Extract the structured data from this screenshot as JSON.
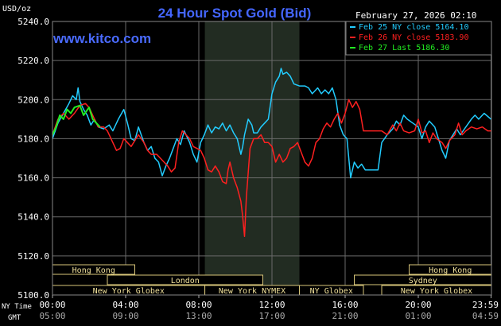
{
  "chart_data": {
    "type": "line",
    "title": "24 Hour Spot Gold (Bid)",
    "watermark": "www.kitco.com",
    "date_label": "February 27, 2026 02:10",
    "ylabel": "USD/oz",
    "ylim": [
      5100,
      5240
    ],
    "y_ticks": [
      {
        "v": 5240,
        "label": "5240.0"
      },
      {
        "v": 5220,
        "label": "5220.0"
      },
      {
        "v": 5200,
        "label": "5200.0"
      },
      {
        "v": 5180,
        "label": "5180.0"
      },
      {
        "v": 5160,
        "label": "5160.0"
      },
      {
        "v": 5140,
        "label": "5140.0"
      },
      {
        "v": 5120,
        "label": "5120.0"
      },
      {
        "v": 5100,
        "label": "5100.0"
      }
    ],
    "x_axis": {
      "row1_label": "NY Time",
      "row2_label": "GMT",
      "ticks": [
        {
          "h": 0,
          "ny": "00:00",
          "gmt": "05:00"
        },
        {
          "h": 4,
          "ny": "04:00",
          "gmt": "09:00"
        },
        {
          "h": 8,
          "ny": "08:00",
          "gmt": "13:00"
        },
        {
          "h": 12,
          "ny": "12:00",
          "gmt": "17:00"
        },
        {
          "h": 16,
          "ny": "16:00",
          "gmt": "21:00"
        },
        {
          "h": 20,
          "ny": "20:00",
          "gmt": "01:00"
        },
        {
          "h": 23.98,
          "ny": "23:59",
          "gmt": "04:59"
        }
      ]
    },
    "grid": true,
    "shaded_session": {
      "start_h": 8.33,
      "end_h": 13.5
    },
    "legend": [
      {
        "label": "Feb 25 NY close 5164.10",
        "color": "#22ccff"
      },
      {
        "label": "Feb 26 NY close 5183.90",
        "color": "#ff2020"
      },
      {
        "label": "Feb 27 Last 5186.30",
        "color": "#22ee22"
      }
    ],
    "sessions": [
      {
        "label": "Hong Kong",
        "row": 0,
        "start_h": 0,
        "end_h": 4.5
      },
      {
        "label": "London",
        "row": 1,
        "start_h": 3,
        "end_h": 11.5
      },
      {
        "label": "New York Globex",
        "row": 2,
        "start_h": 0,
        "end_h": 8.33
      },
      {
        "label": "New York NYMEX",
        "row": 2,
        "start_h": 8.33,
        "end_h": 13.5
      },
      {
        "label": "NY Globex",
        "row": 2,
        "start_h": 13.5,
        "end_h": 17
      },
      {
        "label": "Hong Kong",
        "row": 0,
        "start_h": 19.5,
        "end_h": 24
      },
      {
        "label": "Sydney",
        "row": 1,
        "start_h": 16.5,
        "end_h": 24
      },
      {
        "label": "New York Globex",
        "row": 2,
        "start_h": 18,
        "end_h": 24
      }
    ],
    "series": [
      {
        "color": "#22ccff",
        "points": [
          [
            0,
            5180
          ],
          [
            0.3,
            5188
          ],
          [
            0.6,
            5193
          ],
          [
            0.9,
            5198
          ],
          [
            1.1,
            5202
          ],
          [
            1.3,
            5200
          ],
          [
            1.4,
            5206
          ],
          [
            1.5,
            5199
          ],
          [
            1.7,
            5195
          ],
          [
            1.9,
            5192
          ],
          [
            2.1,
            5187
          ],
          [
            2.3,
            5190
          ],
          [
            2.5,
            5186
          ],
          [
            2.8,
            5185
          ],
          [
            3.1,
            5187
          ],
          [
            3.3,
            5184
          ],
          [
            3.6,
            5190
          ],
          [
            3.9,
            5195
          ],
          [
            4.1,
            5188
          ],
          [
            4.3,
            5180
          ],
          [
            4.5,
            5179
          ],
          [
            4.7,
            5186
          ],
          [
            5,
            5178
          ],
          [
            5.2,
            5174
          ],
          [
            5.4,
            5176
          ],
          [
            5.6,
            5170
          ],
          [
            5.8,
            5168
          ],
          [
            6,
            5161
          ],
          [
            6.2,
            5166
          ],
          [
            6.4,
            5170
          ],
          [
            6.6,
            5175
          ],
          [
            6.8,
            5180
          ],
          [
            7,
            5177
          ],
          [
            7.2,
            5184
          ],
          [
            7.5,
            5178
          ],
          [
            7.7,
            5172
          ],
          [
            7.9,
            5168
          ],
          [
            8.1,
            5178
          ],
          [
            8.3,
            5182
          ],
          [
            8.5,
            5187
          ],
          [
            8.7,
            5183
          ],
          [
            8.9,
            5186
          ],
          [
            9.1,
            5185
          ],
          [
            9.3,
            5188
          ],
          [
            9.5,
            5184
          ],
          [
            9.7,
            5187
          ],
          [
            9.9,
            5183
          ],
          [
            10.1,
            5180
          ],
          [
            10.3,
            5172
          ],
          [
            10.4,
            5176
          ],
          [
            10.5,
            5182
          ],
          [
            10.6,
            5186
          ],
          [
            10.7,
            5190
          ],
          [
            10.9,
            5187
          ],
          [
            11,
            5183
          ],
          [
            11.2,
            5183
          ],
          [
            11.4,
            5186
          ],
          [
            11.6,
            5188
          ],
          [
            11.8,
            5190
          ],
          [
            12,
            5203
          ],
          [
            12.2,
            5209
          ],
          [
            12.4,
            5212
          ],
          [
            12.5,
            5216
          ],
          [
            12.6,
            5213
          ],
          [
            12.8,
            5214
          ],
          [
            13,
            5212
          ],
          [
            13.2,
            5208
          ],
          [
            13.5,
            5207
          ],
          [
            13.8,
            5207
          ],
          [
            14,
            5206
          ],
          [
            14.2,
            5203
          ],
          [
            14.5,
            5206
          ],
          [
            14.7,
            5203
          ],
          [
            14.9,
            5205
          ],
          [
            15.1,
            5203
          ],
          [
            15.3,
            5206
          ],
          [
            15.5,
            5200
          ],
          [
            15.7,
            5187
          ],
          [
            15.9,
            5182
          ],
          [
            16.1,
            5180
          ],
          [
            16.3,
            5160
          ],
          [
            16.5,
            5168
          ],
          [
            16.7,
            5165
          ],
          [
            16.9,
            5167
          ],
          [
            17.1,
            5164
          ],
          [
            17.5,
            5164
          ],
          [
            17.8,
            5164
          ],
          [
            18,
            5178
          ],
          [
            18.3,
            5182
          ],
          [
            18.6,
            5185
          ],
          [
            18.8,
            5189
          ],
          [
            19,
            5187
          ],
          [
            19.2,
            5192
          ],
          [
            19.4,
            5190
          ],
          [
            19.7,
            5188
          ],
          [
            20,
            5186
          ],
          [
            20.2,
            5180
          ],
          [
            20.4,
            5186
          ],
          [
            20.6,
            5189
          ],
          [
            20.9,
            5186
          ],
          [
            21.1,
            5180
          ],
          [
            21.3,
            5174
          ],
          [
            21.5,
            5170
          ],
          [
            21.7,
            5179
          ],
          [
            21.9,
            5182
          ],
          [
            22.1,
            5185
          ],
          [
            22.3,
            5182
          ],
          [
            22.6,
            5186
          ],
          [
            22.9,
            5190
          ],
          [
            23.1,
            5192
          ],
          [
            23.3,
            5190
          ],
          [
            23.6,
            5193
          ],
          [
            23.98,
            5190
          ]
        ]
      },
      {
        "color": "#ff2020",
        "points": [
          [
            0,
            5182
          ],
          [
            0.3,
            5190
          ],
          [
            0.6,
            5193
          ],
          [
            0.9,
            5190
          ],
          [
            1.2,
            5193
          ],
          [
            1.5,
            5197
          ],
          [
            1.8,
            5198
          ],
          [
            2,
            5196
          ],
          [
            2.3,
            5190
          ],
          [
            2.5,
            5186
          ],
          [
            2.8,
            5186
          ],
          [
            3,
            5184
          ],
          [
            3.3,
            5178
          ],
          [
            3.5,
            5174
          ],
          [
            3.7,
            5175
          ],
          [
            3.9,
            5180
          ],
          [
            4.1,
            5178
          ],
          [
            4.3,
            5176
          ],
          [
            4.5,
            5179
          ],
          [
            4.7,
            5182
          ],
          [
            5,
            5178
          ],
          [
            5.2,
            5174
          ],
          [
            5.4,
            5172
          ],
          [
            5.7,
            5172
          ],
          [
            5.9,
            5170
          ],
          [
            6.1,
            5168
          ],
          [
            6.3,
            5166
          ],
          [
            6.5,
            5163
          ],
          [
            6.7,
            5165
          ],
          [
            6.9,
            5178
          ],
          [
            7.1,
            5184
          ],
          [
            7.3,
            5182
          ],
          [
            7.5,
            5180
          ],
          [
            7.7,
            5176
          ],
          [
            7.9,
            5175
          ],
          [
            8.1,
            5174
          ],
          [
            8.3,
            5170
          ],
          [
            8.5,
            5164
          ],
          [
            8.7,
            5163
          ],
          [
            8.9,
            5166
          ],
          [
            9.1,
            5163
          ],
          [
            9.3,
            5158
          ],
          [
            9.5,
            5157
          ],
          [
            9.6,
            5164
          ],
          [
            9.7,
            5168
          ],
          [
            9.9,
            5160
          ],
          [
            10.1,
            5155
          ],
          [
            10.3,
            5148
          ],
          [
            10.4,
            5140
          ],
          [
            10.5,
            5130
          ],
          [
            10.6,
            5150
          ],
          [
            10.8,
            5175
          ],
          [
            11,
            5180
          ],
          [
            11.2,
            5180
          ],
          [
            11.4,
            5182
          ],
          [
            11.6,
            5178
          ],
          [
            11.8,
            5178
          ],
          [
            12,
            5176
          ],
          [
            12.2,
            5168
          ],
          [
            12.4,
            5172
          ],
          [
            12.6,
            5168
          ],
          [
            12.8,
            5170
          ],
          [
            13,
            5175
          ],
          [
            13.2,
            5176
          ],
          [
            13.4,
            5178
          ],
          [
            13.6,
            5173
          ],
          [
            13.8,
            5168
          ],
          [
            14,
            5166
          ],
          [
            14.2,
            5170
          ],
          [
            14.4,
            5178
          ],
          [
            14.6,
            5180
          ],
          [
            14.8,
            5185
          ],
          [
            15,
            5188
          ],
          [
            15.2,
            5186
          ],
          [
            15.4,
            5190
          ],
          [
            15.6,
            5193
          ],
          [
            15.8,
            5188
          ],
          [
            16,
            5193
          ],
          [
            16.2,
            5200
          ],
          [
            16.4,
            5196
          ],
          [
            16.6,
            5199
          ],
          [
            16.8,
            5195
          ],
          [
            17,
            5184
          ],
          [
            17.5,
            5184
          ],
          [
            18,
            5184
          ],
          [
            18.3,
            5182
          ],
          [
            18.6,
            5187
          ],
          [
            18.8,
            5184
          ],
          [
            19,
            5188
          ],
          [
            19.2,
            5184
          ],
          [
            19.5,
            5183
          ],
          [
            19.8,
            5184
          ],
          [
            20,
            5190
          ],
          [
            20.2,
            5183
          ],
          [
            20.4,
            5184
          ],
          [
            20.6,
            5178
          ],
          [
            20.8,
            5183
          ],
          [
            21,
            5180
          ],
          [
            21.3,
            5178
          ],
          [
            21.5,
            5175
          ],
          [
            21.7,
            5179
          ],
          [
            22,
            5182
          ],
          [
            22.2,
            5188
          ],
          [
            22.4,
            5182
          ],
          [
            22.6,
            5184
          ],
          [
            22.9,
            5186
          ],
          [
            23.2,
            5185
          ],
          [
            23.5,
            5186
          ],
          [
            23.8,
            5184
          ],
          [
            23.98,
            5184
          ]
        ]
      },
      {
        "color": "#22ee22",
        "points": [
          [
            0,
            5182
          ],
          [
            0.2,
            5186
          ],
          [
            0.4,
            5192
          ],
          [
            0.6,
            5190
          ],
          [
            0.8,
            5195
          ],
          [
            1,
            5193
          ],
          [
            1.2,
            5196
          ],
          [
            1.5,
            5197
          ],
          [
            1.7,
            5192
          ],
          [
            2,
            5196
          ],
          [
            2.2,
            5190
          ],
          [
            2.4,
            5188
          ],
          [
            2.6,
            5186
          ]
        ]
      }
    ]
  }
}
